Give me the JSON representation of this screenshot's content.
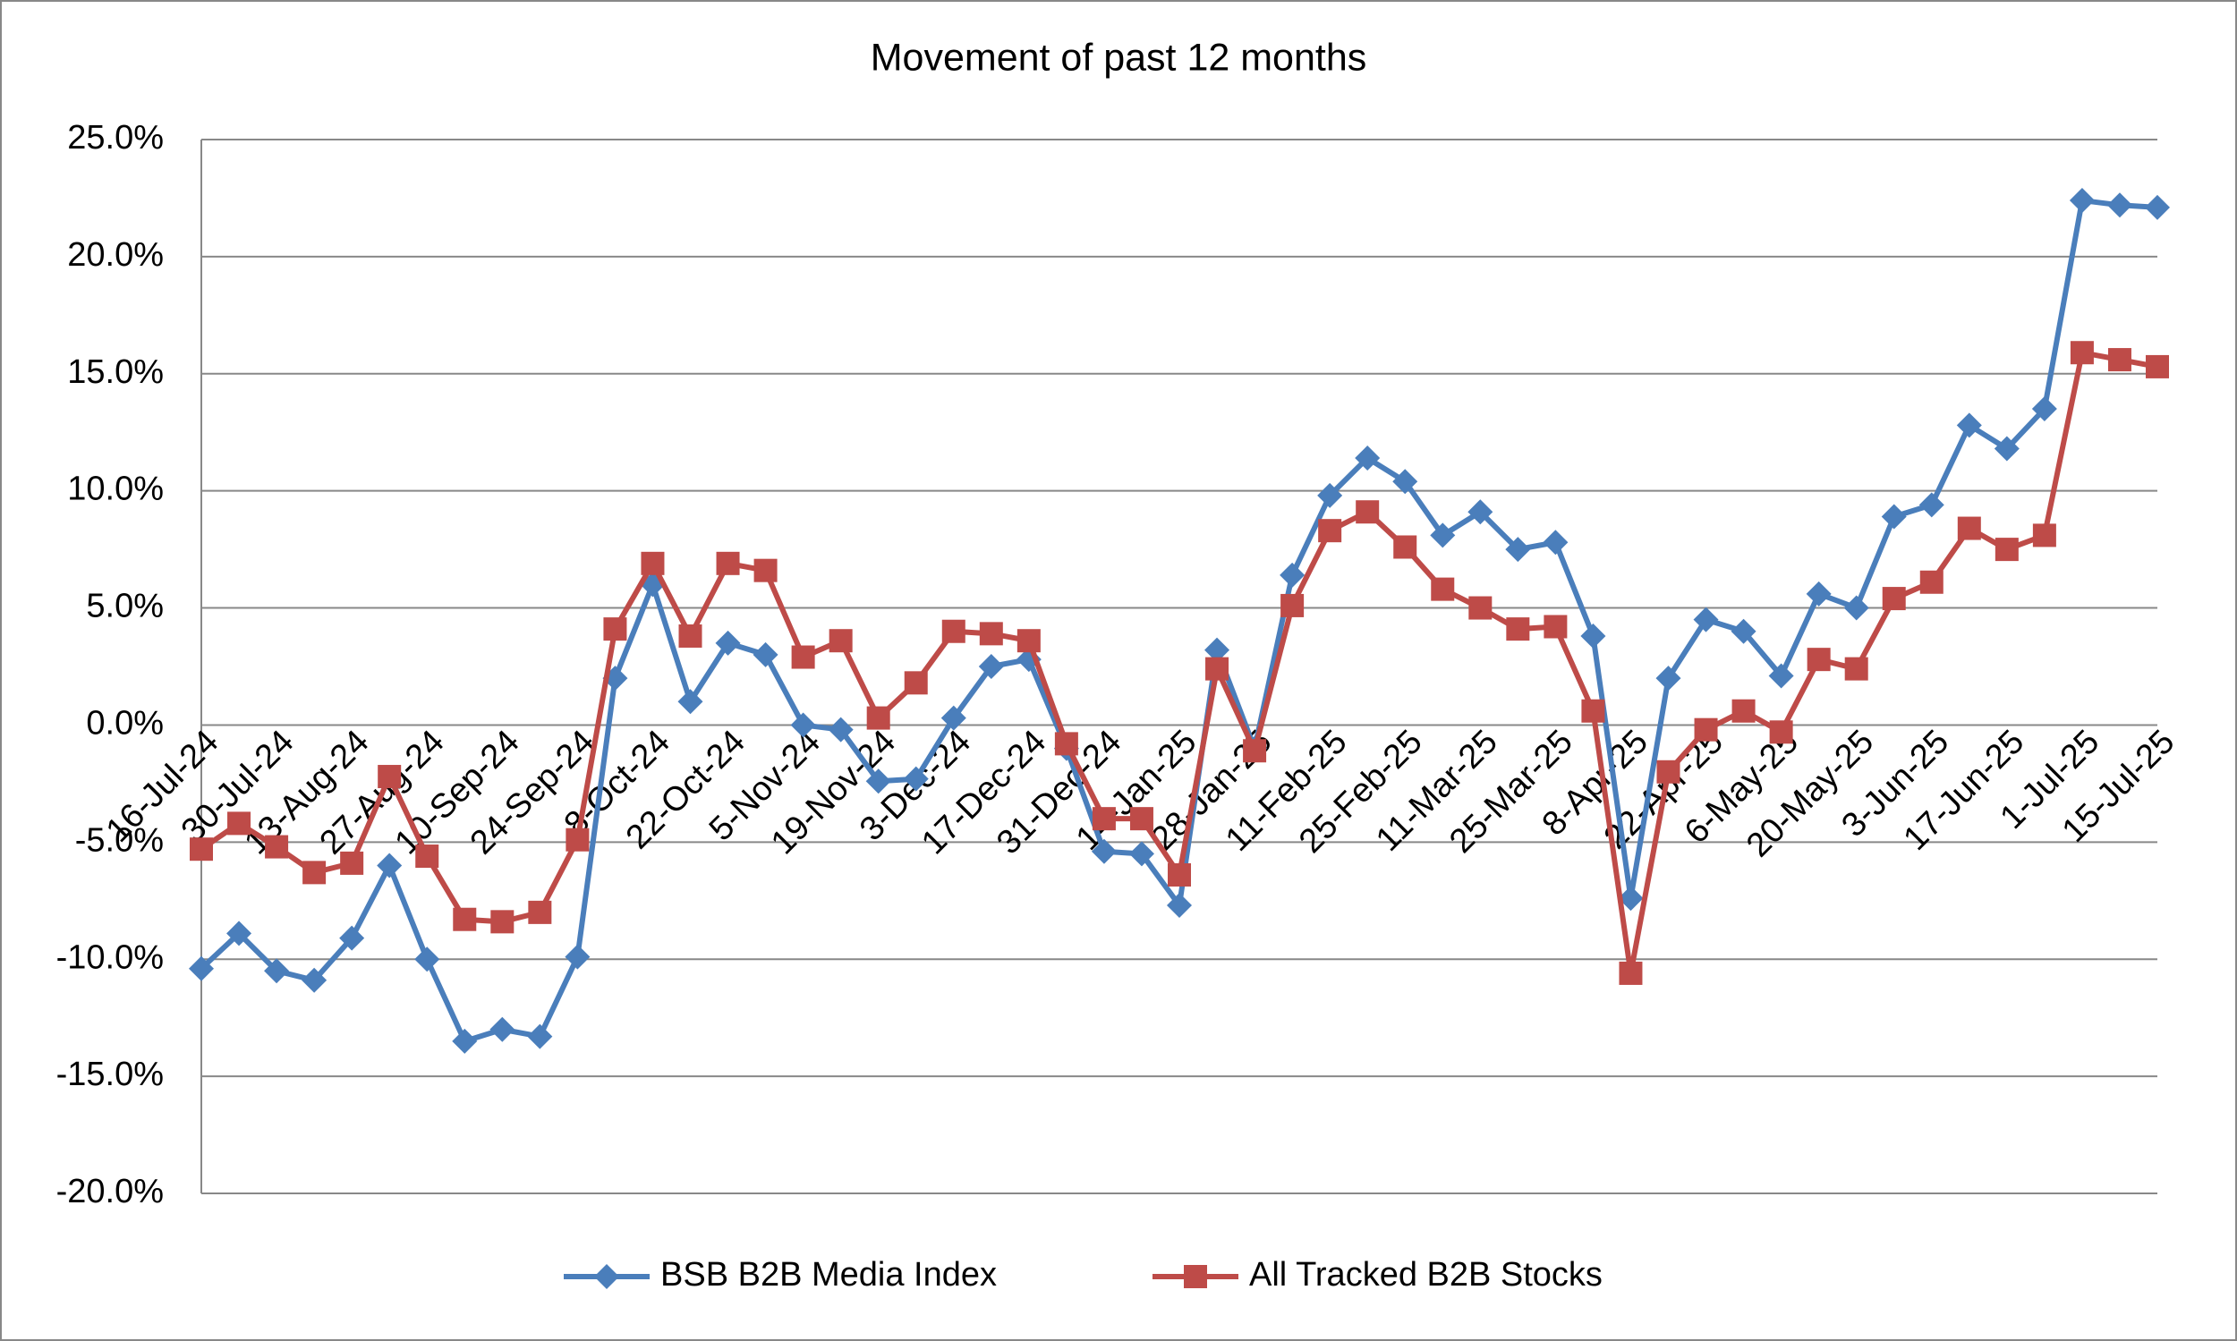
{
  "chart_data": {
    "type": "line",
    "title": "Movement of past 12 months",
    "categories": [
      "16-Jul-24",
      null,
      "30-Jul-24",
      null,
      "13-Aug-24",
      null,
      "27-Aug-24",
      null,
      "10-Sep-24",
      null,
      "24-Sep-24",
      null,
      "8-Oct-24",
      null,
      "22-Oct-24",
      null,
      "5-Nov-24",
      null,
      "19-Nov-24",
      null,
      "3-Dec-24",
      null,
      "17-Dec-24",
      null,
      "31-Dec-24",
      null,
      "14-Jan-25",
      null,
      "28-Jan-25",
      null,
      "11-Feb-25",
      null,
      "25-Feb-25",
      null,
      "11-Mar-25",
      null,
      "25-Mar-25",
      null,
      "8-Apr-25",
      null,
      "22-Apr-25",
      null,
      "6-May-25",
      null,
      "20-May-25",
      null,
      "3-Jun-25",
      null,
      "17-Jun-25",
      null,
      "1-Jul-25",
      null,
      "15-Jul-25"
    ],
    "series": [
      {
        "name": "BSB B2B Media Index",
        "color": "#4a7ebb",
        "marker": "diamond",
        "values": [
          -10.4,
          -8.9,
          -10.5,
          -10.9,
          -9.1,
          -6.0,
          -10.0,
          -13.5,
          -13.0,
          -13.3,
          -9.9,
          2.0,
          6.0,
          1.0,
          3.5,
          3.0,
          0.0,
          -0.2,
          -2.4,
          -2.3,
          0.3,
          2.5,
          2.8,
          -1.0,
          -5.4,
          -5.5,
          -7.7,
          3.2,
          -1.0,
          6.4,
          9.8,
          11.4,
          10.4,
          8.1,
          9.1,
          7.5,
          7.8,
          3.8,
          -7.4,
          2.0,
          4.5,
          4.0,
          2.1,
          5.6,
          5.0,
          8.9,
          9.4,
          12.8,
          11.8,
          13.5,
          22.4,
          22.2,
          22.1
        ]
      },
      {
        "name": "All Tracked B2B Stocks",
        "color": "#be4b48",
        "marker": "square",
        "values": [
          -5.3,
          -4.2,
          -5.2,
          -6.3,
          -5.9,
          -2.2,
          -5.6,
          -8.3,
          -8.4,
          -8.0,
          -4.9,
          4.1,
          6.9,
          3.8,
          6.9,
          6.6,
          2.9,
          3.6,
          0.3,
          1.8,
          4.0,
          3.9,
          3.6,
          -0.8,
          -4.0,
          -4.0,
          -6.4,
          2.4,
          -1.1,
          5.1,
          8.3,
          9.1,
          7.6,
          5.8,
          5.0,
          4.1,
          4.2,
          0.6,
          -10.6,
          -2.0,
          -0.2,
          0.6,
          -0.3,
          2.8,
          2.4,
          5.4,
          6.1,
          8.4,
          7.5,
          8.1,
          15.9,
          15.6,
          15.3
        ]
      }
    ],
    "ylim": [
      -20,
      25
    ],
    "yticks": [
      {
        "value": -20,
        "label": "-20.0%"
      },
      {
        "value": -15,
        "label": "-15.0%"
      },
      {
        "value": -10,
        "label": "-10.0%"
      },
      {
        "value": -5,
        "label": "-5.0%"
      },
      {
        "value": 0,
        "label": "0.0%"
      },
      {
        "value": 5,
        "label": "5.0%"
      },
      {
        "value": 10,
        "label": "10.0%"
      },
      {
        "value": 15,
        "label": "15.0%"
      },
      {
        "value": 20,
        "label": "20.0%"
      },
      {
        "value": 25,
        "label": "25.0%"
      }
    ],
    "grid": true,
    "legend": "bottom"
  }
}
